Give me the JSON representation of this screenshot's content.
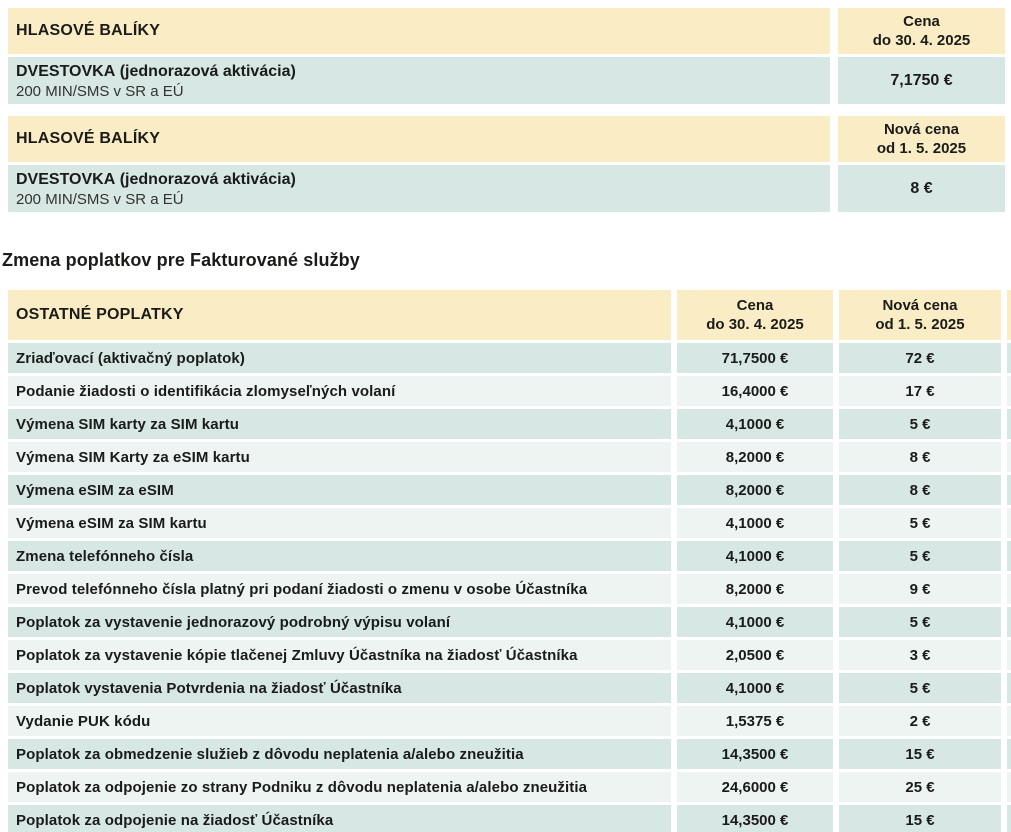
{
  "colors": {
    "header_bg": "#faedc5",
    "row_teal": "#d6e7e4",
    "row_light": "#edf4f2",
    "text": "#1b1b19"
  },
  "section_heading": "Zmena poplatkov pre Fakturované služby",
  "voice_old": {
    "title": "HLASOVÉ BALÍKY",
    "price_col_line1": "Cena",
    "price_col_line2": "do 30. 4. 2025",
    "row": {
      "name": "DVESTOVKA",
      "name_note": " (jednorazová aktivácia)",
      "subtitle": "200 MIN/SMS v SR a EÚ",
      "price": "7,1750 €"
    }
  },
  "voice_new": {
    "title": "HLASOVÉ BALÍKY",
    "price_col_line1": "Nová cena",
    "price_col_line2": "od 1. 5. 2025",
    "row": {
      "name": "DVESTOVKA",
      "name_note": " (jednorazová aktivácia)",
      "subtitle": "200 MIN/SMS v SR a EÚ",
      "price": "8 €"
    }
  },
  "fees": {
    "title": "OSTATNÉ POPLATKY",
    "old_col_line1": "Cena",
    "old_col_line2": "do 30. 4. 2025",
    "new_col_line1": "Nová cena",
    "new_col_line2": "od 1. 5. 2025",
    "rows": [
      {
        "label": "Zriaďovací (aktivačný poplatok)",
        "old": "71,7500 €",
        "new": "72 €"
      },
      {
        "label": "Podanie žiadosti o identifikácia zlomyseľných volaní",
        "old": "16,4000 €",
        "new": "17 €"
      },
      {
        "label": "Výmena SIM karty za SIM kartu",
        "old": "4,1000 €",
        "new": "5 €"
      },
      {
        "label": "Výmena SIM Karty za eSIM kartu",
        "old": "8,2000 €",
        "new": "8 €"
      },
      {
        "label": "Výmena eSIM za eSIM",
        "old": "8,2000 €",
        "new": "8 €"
      },
      {
        "label": "Výmena eSIM za SIM kartu",
        "old": "4,1000 €",
        "new": "5 €"
      },
      {
        "label": "Zmena telefónneho čísla",
        "old": "4,1000 €",
        "new": "5 €"
      },
      {
        "label": "Prevod telefónneho čísla platný pri podaní žiadosti o zmenu v osobe Účastníka",
        "old": "8,2000 €",
        "new": "9 €"
      },
      {
        "label": "Poplatok za vystavenie jednorazový podrobný výpisu volaní",
        "old": "4,1000 €",
        "new": "5 €"
      },
      {
        "label": "Poplatok za vystavenie kópie tlačenej Zmluvy Účastníka na žiadosť Účastníka",
        "old": "2,0500 €",
        "new": "3 €"
      },
      {
        "label": "Poplatok vystavenia Potvrdenia na žiadosť Účastníka",
        "old": "4,1000 €",
        "new": "5 €"
      },
      {
        "label": "Vydanie PUK kódu",
        "old": "1,5375 €",
        "new": "2 €"
      },
      {
        "label": "Poplatok za obmedzenie služieb z dôvodu neplatenia a/alebo zneužitia",
        "old": "14,3500 €",
        "new": "15 €"
      },
      {
        "label": "Poplatok za odpojenie zo strany Podniku z dôvodu neplatenia a/alebo zneužitia",
        "old": "24,6000 €",
        "new": "25 €"
      },
      {
        "label": "Poplatok za odpojenie na žiadosť Účastníka",
        "old": "14,3500 €",
        "new": "15 €"
      }
    ]
  }
}
